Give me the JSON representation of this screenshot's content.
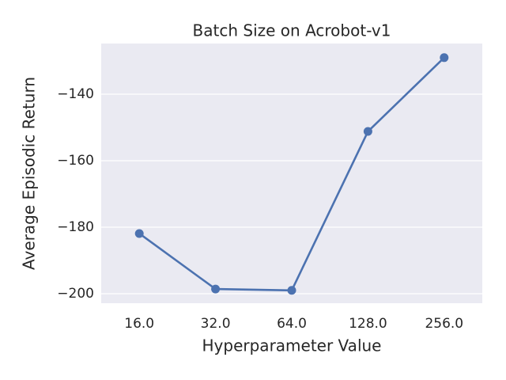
{
  "chart_data": {
    "type": "line",
    "title": "Batch Size on Acrobot-v1",
    "x_label": "Hyperparameter Value",
    "y_label": "Average Episodic Return",
    "categories": [
      "16.0",
      "32.0",
      "64.0",
      "128.0",
      "256.0"
    ],
    "values": [
      -181.9,
      -198.6,
      -199.0,
      -151.2,
      -129.0
    ],
    "color": "#4c72b0",
    "ylim": [
      -202.86,
      -124.76
    ],
    "yticks": [
      {
        "value": -200,
        "label": "−200"
      },
      {
        "value": -180,
        "label": "−180"
      },
      {
        "value": -160,
        "label": "−160"
      },
      {
        "value": -140,
        "label": "−140"
      }
    ],
    "grid": true
  }
}
